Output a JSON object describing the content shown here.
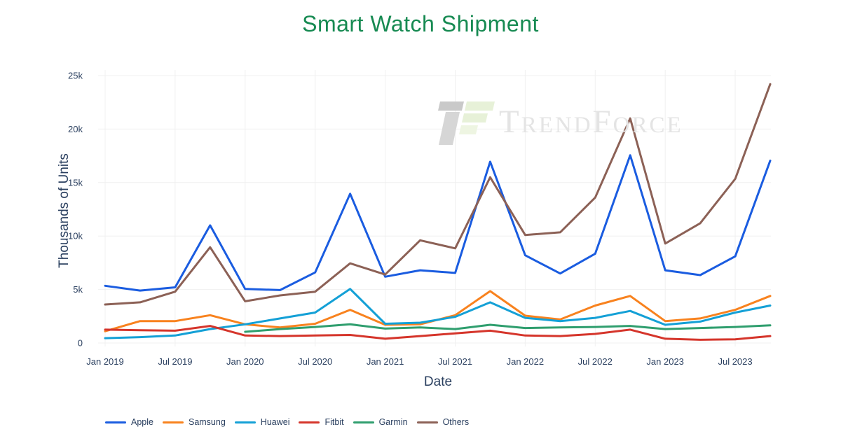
{
  "title": {
    "text": "Smart Watch Shipment"
  },
  "watermark": {
    "text": "TrendForce"
  },
  "colors": {
    "title": "#178a52",
    "axis_text": "#2a3f5f",
    "grid": "#f0f0f0",
    "background": "#ffffff",
    "watermark_text": "#e4e4e4",
    "logo_gray": "#c9c9c9",
    "logo_gray_light": "#d6d6d6",
    "logo_green": "#e7f1d8"
  },
  "chart_data": {
    "type": "line",
    "title": "Smart Watch Shipment",
    "xlabel": "Date",
    "ylabel": "Thousands of Units",
    "grid": true,
    "legend_position": "bottom",
    "ylim": [
      0,
      25000
    ],
    "y_tick_values": [
      0,
      5000,
      10000,
      15000,
      20000,
      25000
    ],
    "y_tick_labels": [
      "0",
      "5k",
      "10k",
      "15k",
      "20k",
      "25k"
    ],
    "x": [
      "Jan 2019",
      "Apr 2019",
      "Jul 2019",
      "Oct 2019",
      "Jan 2020",
      "Apr 2020",
      "Jul 2020",
      "Oct 2020",
      "Jan 2021",
      "Apr 2021",
      "Jul 2021",
      "Oct 2021",
      "Jan 2022",
      "Apr 2022",
      "Jul 2022",
      "Oct 2022",
      "Jan 2023",
      "Apr 2023",
      "Jul 2023",
      "Oct 2023"
    ],
    "x_tick_labels": [
      "Jan 2019",
      "Jul 2019",
      "Jan 2020",
      "Jul 2020",
      "Jan 2021",
      "Jul 2021",
      "Jan 2022",
      "Jul 2022",
      "Jan 2023",
      "Jul 2023"
    ],
    "x_tick_indices": [
      0,
      2,
      4,
      6,
      8,
      10,
      12,
      14,
      16,
      18
    ],
    "series": [
      {
        "name": "Apple",
        "color": "#1a5ce0",
        "values": [
          5350,
          4900,
          5200,
          11000,
          5050,
          4950,
          6600,
          13950,
          6200,
          6800,
          6550,
          16950,
          8200,
          6500,
          8350,
          17550,
          6800,
          6350,
          8100,
          17050
        ]
      },
      {
        "name": "Samsung",
        "color": "#f8821e",
        "values": [
          1100,
          2050,
          2050,
          2600,
          1750,
          1450,
          1800,
          3100,
          1700,
          1750,
          2600,
          4850,
          2550,
          2200,
          3500,
          4400,
          2050,
          2300,
          3100,
          4400
        ]
      },
      {
        "name": "Huawei",
        "color": "#14a0d6",
        "values": [
          450,
          550,
          700,
          1300,
          1750,
          2300,
          2850,
          5050,
          1800,
          1900,
          2450,
          3800,
          2350,
          2050,
          2350,
          3000,
          1700,
          2000,
          2850,
          3500
        ]
      },
      {
        "name": "Fitbit",
        "color": "#d5352b",
        "values": [
          1250,
          1200,
          1150,
          1600,
          700,
          650,
          700,
          750,
          400,
          650,
          900,
          1150,
          700,
          650,
          850,
          1250,
          400,
          300,
          350,
          650
        ]
      },
      {
        "name": "Garmin",
        "color": "#2f9e6e",
        "values": [
          null,
          null,
          null,
          null,
          1050,
          1300,
          1500,
          1750,
          1350,
          1450,
          1300,
          1700,
          1400,
          1450,
          1500,
          1600,
          1300,
          1400,
          1500,
          1650
        ]
      },
      {
        "name": "Others",
        "color": "#8c6156",
        "values": [
          3600,
          3800,
          4800,
          8950,
          3900,
          4450,
          4800,
          7450,
          6400,
          9600,
          8850,
          15500,
          10100,
          10350,
          13600,
          21000,
          9300,
          11200,
          15350,
          24200
        ]
      }
    ]
  }
}
